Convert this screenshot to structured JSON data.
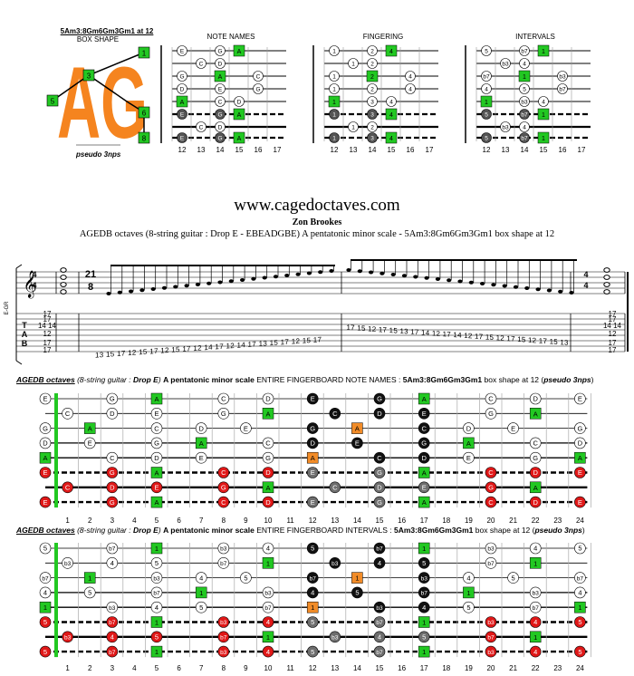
{
  "colors": {
    "root_green": "#22c822",
    "orange_note": "#f28c28",
    "red_note": "#e01818",
    "black_note": "#111111",
    "grey_note": "#6e6e6e",
    "logo_orange": "#f5841f"
  },
  "top_left": {
    "title": "5Am3:8Gm6Gm3Gm1 at 12",
    "subtitle": "BOX SHAPE",
    "logo_letters": "AG",
    "caption": "pseudo 3nps",
    "markers": [
      "1",
      "3",
      "5",
      "6",
      "8"
    ]
  },
  "mini_diagrams": [
    {
      "label": "NOTE NAMES",
      "strings": [
        [
          "E",
          "",
          "G",
          "A"
        ],
        [
          "",
          "C",
          "D",
          ""
        ],
        [
          "G",
          "",
          "A",
          "",
          "C"
        ],
        [
          "D",
          "",
          "E",
          "",
          "G"
        ],
        [
          "A",
          "",
          "C",
          "D",
          ""
        ],
        [
          "E",
          "",
          "G",
          "A"
        ],
        [
          "",
          "C",
          "D",
          ""
        ],
        [
          "E",
          "",
          "G",
          "A"
        ]
      ]
    },
    {
      "label": "FINGERING",
      "strings": [
        [
          "1",
          "",
          "2",
          "4"
        ],
        [
          "",
          "1",
          "2",
          ""
        ],
        [
          "1",
          "",
          "2",
          "",
          "4"
        ],
        [
          "1",
          "",
          "2",
          "",
          "4"
        ],
        [
          "1",
          "",
          "3",
          "4",
          ""
        ],
        [
          "1",
          "",
          "3",
          "4"
        ],
        [
          "",
          "1",
          "2",
          ""
        ],
        [
          "1",
          "",
          "3",
          "4"
        ]
      ]
    },
    {
      "label": "INTERVALS",
      "strings": [
        [
          "5",
          "",
          "b7",
          "1"
        ],
        [
          "",
          "b3",
          "4",
          ""
        ],
        [
          "b7",
          "",
          "1",
          "",
          "b3"
        ],
        [
          "4",
          "",
          "5",
          "",
          "b7"
        ],
        [
          "1",
          "",
          "b3",
          "4",
          ""
        ],
        [
          "5",
          "",
          "b7",
          "1"
        ],
        [
          "",
          "b3",
          "4",
          ""
        ],
        [
          "5",
          "",
          "b7",
          "1"
        ]
      ]
    }
  ],
  "mini_frets": [
    "12",
    "13",
    "14",
    "15",
    "16",
    "17"
  ],
  "site": {
    "url": "www.cagedoctaves.com",
    "author": "Zon Brookes",
    "description": "AGEDB octaves (8-string guitar : Drop E - EBEADGBE) A pentatonic minor scale - 5Am3:8Gm6Gm3Gm1 box shape at 12"
  },
  "score": {
    "left_label": "E-GR",
    "time_sig_4_4": [
      "4",
      "4"
    ],
    "time_sig_main": [
      "21",
      "8"
    ],
    "tab_letters": [
      "T",
      "A",
      "B"
    ],
    "left_chord_tab": [
      "17",
      "17",
      "14 14",
      "12",
      "17",
      "17"
    ],
    "right_chord_tab": [
      "17",
      "17",
      "14 14",
      "12",
      "17",
      "17"
    ],
    "tab_rows": [
      "17",
      "12 15 17",
      "12 14 17  13 15 17",
      "12 14 17",
      "12 15 17",
      "13 15 17",
      "12 15 17",
      "12 15 17",
      "17 15 12",
      "17 15 13",
      "17 14 12",
      "17 14 12",
      "17 15 12",
      "17 15 12",
      "17 15 12  17 15 13"
    ],
    "tab_left_text": "13 15 17 12 15 17 12 15 17 12 14 17 12 14 17 13 15 17 12 15 17",
    "tab_right_text": "17 15 12 17 15 13 17 14 12 17 14 12 17 15 12 17 15 12 17 15 13"
  },
  "fingerboard_names": {
    "title_prefix": "AGEDB octaves",
    "title_guitar": "(8-string guitar : ",
    "title_drop": "Drop E",
    "title_close": ")",
    "title_scale": "A pentatonic minor scale",
    "title_mode": "ENTIRE FINGERBOARD NOTE NAMES :",
    "title_shape": "5Am3:8Gm6Gm3Gm1",
    "title_at": "box shape at 12 (",
    "title_3nps": "pseudo 3nps",
    "title_end": ")",
    "strings": [
      {
        "open": "E",
        "notes": [
          [
            3,
            "G"
          ],
          [
            5,
            "A"
          ],
          [
            8,
            "C"
          ],
          [
            10,
            "D"
          ],
          [
            12,
            "E"
          ],
          [
            15,
            "G"
          ],
          [
            17,
            "A"
          ],
          [
            20,
            "C"
          ],
          [
            22,
            "D"
          ],
          [
            24,
            "E"
          ]
        ]
      },
      {
        "open": "",
        "notes": [
          [
            1,
            "C"
          ],
          [
            3,
            "D"
          ],
          [
            5,
            "E"
          ],
          [
            8,
            "G"
          ],
          [
            10,
            "A"
          ],
          [
            13,
            "C"
          ],
          [
            15,
            "D"
          ],
          [
            17,
            "E"
          ],
          [
            20,
            "G"
          ],
          [
            22,
            "A"
          ]
        ]
      },
      {
        "open": "G",
        "notes": [
          [
            2,
            "A"
          ],
          [
            5,
            "C"
          ],
          [
            7,
            "D"
          ],
          [
            9,
            "E"
          ],
          [
            12,
            "G"
          ],
          [
            14,
            "A"
          ],
          [
            17,
            "C"
          ],
          [
            19,
            "D"
          ],
          [
            21,
            "E"
          ],
          [
            24,
            "G"
          ]
        ]
      },
      {
        "open": "D",
        "notes": [
          [
            2,
            "E"
          ],
          [
            5,
            "G"
          ],
          [
            7,
            "A"
          ],
          [
            10,
            "C"
          ],
          [
            12,
            "D"
          ],
          [
            14,
            "E"
          ],
          [
            17,
            "G"
          ],
          [
            19,
            "A"
          ],
          [
            22,
            "C"
          ],
          [
            24,
            "D"
          ]
        ]
      },
      {
        "open": "A",
        "notes": [
          [
            3,
            "C"
          ],
          [
            5,
            "D"
          ],
          [
            7,
            "E"
          ],
          [
            10,
            "G"
          ],
          [
            12,
            "A"
          ],
          [
            15,
            "C"
          ],
          [
            17,
            "D"
          ],
          [
            19,
            "E"
          ],
          [
            22,
            "G"
          ],
          [
            24,
            "A"
          ]
        ]
      },
      {
        "open": "E",
        "notes": [
          [
            3,
            "G"
          ],
          [
            5,
            "A"
          ],
          [
            8,
            "C"
          ],
          [
            10,
            "D"
          ],
          [
            12,
            "E"
          ],
          [
            15,
            "G"
          ],
          [
            17,
            "A"
          ],
          [
            20,
            "C"
          ],
          [
            22,
            "D"
          ],
          [
            24,
            "E"
          ]
        ]
      },
      {
        "open": "",
        "notes": [
          [
            1,
            "C"
          ],
          [
            3,
            "D"
          ],
          [
            5,
            "E"
          ],
          [
            8,
            "G"
          ],
          [
            10,
            "A"
          ],
          [
            13,
            "C"
          ],
          [
            15,
            "D"
          ],
          [
            17,
            "E"
          ],
          [
            20,
            "G"
          ],
          [
            22,
            "A"
          ]
        ]
      },
      {
        "open": "E",
        "notes": [
          [
            3,
            "G"
          ],
          [
            5,
            "A"
          ],
          [
            8,
            "C"
          ],
          [
            10,
            "D"
          ],
          [
            12,
            "E"
          ],
          [
            15,
            "G"
          ],
          [
            17,
            "A"
          ],
          [
            20,
            "C"
          ],
          [
            22,
            "D"
          ],
          [
            24,
            "E"
          ]
        ]
      }
    ]
  },
  "fingerboard_intervals": {
    "title_mode": "ENTIRE FINGERBOARD INTERVALS :",
    "strings": [
      {
        "open": "5",
        "notes": [
          [
            3,
            "b7"
          ],
          [
            5,
            "1"
          ],
          [
            8,
            "b3"
          ],
          [
            10,
            "4"
          ],
          [
            12,
            "5"
          ],
          [
            15,
            "b7"
          ],
          [
            17,
            "1"
          ],
          [
            20,
            "b3"
          ],
          [
            22,
            "4"
          ],
          [
            24,
            "5"
          ]
        ]
      },
      {
        "open": "",
        "notes": [
          [
            1,
            "b3"
          ],
          [
            3,
            "4"
          ],
          [
            5,
            "5"
          ],
          [
            8,
            "b7"
          ],
          [
            10,
            "1"
          ],
          [
            13,
            "b3"
          ],
          [
            15,
            "4"
          ],
          [
            17,
            "5"
          ],
          [
            20,
            "b7"
          ],
          [
            22,
            "1"
          ]
        ]
      },
      {
        "open": "b7",
        "notes": [
          [
            2,
            "1"
          ],
          [
            5,
            "b3"
          ],
          [
            7,
            "4"
          ],
          [
            9,
            "5"
          ],
          [
            12,
            "b7"
          ],
          [
            14,
            "1"
          ],
          [
            17,
            "b3"
          ],
          [
            19,
            "4"
          ],
          [
            21,
            "5"
          ],
          [
            24,
            "b7"
          ]
        ]
      },
      {
        "open": "4",
        "notes": [
          [
            2,
            "5"
          ],
          [
            5,
            "b7"
          ],
          [
            7,
            "1"
          ],
          [
            10,
            "b3"
          ],
          [
            12,
            "4"
          ],
          [
            14,
            "5"
          ],
          [
            17,
            "b7"
          ],
          [
            19,
            "1"
          ],
          [
            22,
            "b3"
          ],
          [
            24,
            "4"
          ]
        ]
      },
      {
        "open": "1",
        "notes": [
          [
            3,
            "b3"
          ],
          [
            5,
            "4"
          ],
          [
            7,
            "5"
          ],
          [
            10,
            "b7"
          ],
          [
            12,
            "1"
          ],
          [
            15,
            "b3"
          ],
          [
            17,
            "4"
          ],
          [
            19,
            "5"
          ],
          [
            22,
            "b7"
          ],
          [
            24,
            "1"
          ]
        ]
      },
      {
        "open": "5",
        "notes": [
          [
            3,
            "b7"
          ],
          [
            5,
            "1"
          ],
          [
            8,
            "b3"
          ],
          [
            10,
            "4"
          ],
          [
            12,
            "5"
          ],
          [
            15,
            "b7"
          ],
          [
            17,
            "1"
          ],
          [
            20,
            "b3"
          ],
          [
            22,
            "4"
          ],
          [
            24,
            "5"
          ]
        ]
      },
      {
        "open": "",
        "notes": [
          [
            1,
            "b3"
          ],
          [
            3,
            "4"
          ],
          [
            5,
            "5"
          ],
          [
            8,
            "b7"
          ],
          [
            10,
            "1"
          ],
          [
            13,
            "b3"
          ],
          [
            15,
            "4"
          ],
          [
            17,
            "5"
          ],
          [
            20,
            "b7"
          ],
          [
            22,
            "1"
          ]
        ]
      },
      {
        "open": "5",
        "notes": [
          [
            3,
            "b7"
          ],
          [
            5,
            "1"
          ],
          [
            8,
            "b3"
          ],
          [
            10,
            "4"
          ],
          [
            12,
            "5"
          ],
          [
            15,
            "b7"
          ],
          [
            17,
            "1"
          ],
          [
            20,
            "b3"
          ],
          [
            22,
            "4"
          ],
          [
            24,
            "5"
          ]
        ]
      }
    ]
  },
  "fret_numbers": [
    "1",
    "2",
    "3",
    "4",
    "5",
    "6",
    "7",
    "8",
    "9",
    "10",
    "11",
    "12",
    "13",
    "14",
    "15",
    "16",
    "17",
    "18",
    "19",
    "20",
    "21",
    "22",
    "23",
    "24"
  ]
}
